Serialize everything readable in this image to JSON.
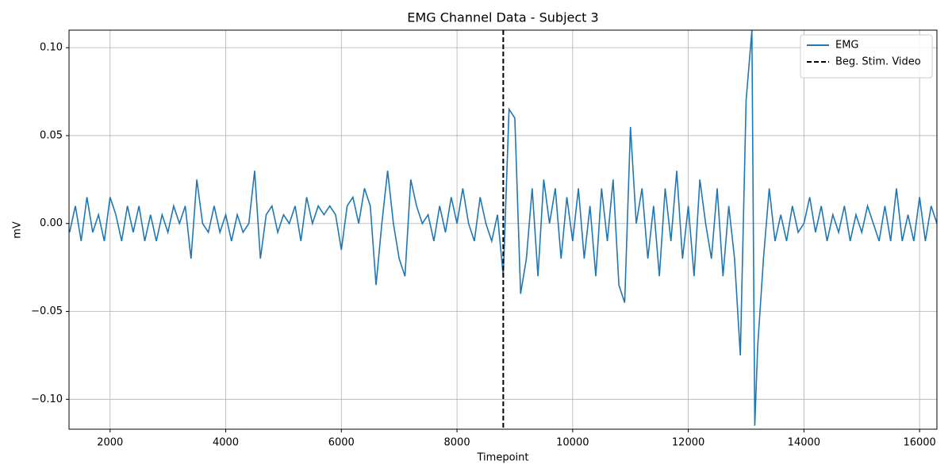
{
  "chart_data": {
    "type": "line",
    "title": "EMG Channel Data - Subject 3",
    "x_label": "Timepoint",
    "y_label": "mV",
    "xlim": [
      1290,
      16300
    ],
    "ylim": [
      -0.117,
      0.11
    ],
    "xticks": [
      2000,
      4000,
      6000,
      8000,
      10000,
      12000,
      14000,
      16000
    ],
    "yticks": [
      {
        "value": -0.1,
        "label": "−0.10"
      },
      {
        "value": -0.05,
        "label": "−0.05"
      },
      {
        "value": 0,
        "label": "0.00"
      },
      0.05,
      {
        "value": 0.1,
        "label": "0.10"
      }
    ],
    "grid": true,
    "legend": "upper right",
    "x": [
      1300,
      1400,
      1500,
      1600,
      1700,
      1800,
      1900,
      2000,
      2100,
      2200,
      2300,
      2400,
      2500,
      2600,
      2700,
      2800,
      2900,
      3000,
      3100,
      3200,
      3300,
      3400,
      3500,
      3600,
      3700,
      3800,
      3900,
      4000,
      4100,
      4200,
      4300,
      4400,
      4500,
      4600,
      4700,
      4800,
      4900,
      5000,
      5100,
      5200,
      5300,
      5400,
      5500,
      5600,
      5700,
      5800,
      5900,
      6000,
      6100,
      6200,
      6300,
      6400,
      6500,
      6600,
      6700,
      6800,
      6900,
      7000,
      7100,
      7200,
      7300,
      7400,
      7500,
      7600,
      7700,
      7800,
      7900,
      8000,
      8100,
      8200,
      8300,
      8400,
      8500,
      8600,
      8700,
      8800,
      8900,
      9000,
      9100,
      9200,
      9300,
      9400,
      9500,
      9600,
      9700,
      9800,
      9900,
      10000,
      10100,
      10200,
      10300,
      10400,
      10500,
      10600,
      10700,
      10800,
      10900,
      11000,
      11100,
      11200,
      11300,
      11400,
      11500,
      11600,
      11700,
      11800,
      11900,
      12000,
      12100,
      12200,
      12300,
      12400,
      12500,
      12600,
      12700,
      12800,
      12900,
      13000,
      13100,
      13150,
      13200,
      13300,
      13400,
      13500,
      13600,
      13700,
      13800,
      13900,
      14000,
      14100,
      14200,
      14300,
      14400,
      14500,
      14600,
      14700,
      14800,
      14900,
      15000,
      15100,
      15200,
      15300,
      15400,
      15500,
      15600,
      15700,
      15800,
      15900,
      16000,
      16100,
      16200,
      16300
    ],
    "series": [
      {
        "name": "EMG",
        "color": "#1f77b4",
        "values": [
          -0.005,
          0.01,
          -0.01,
          0.015,
          -0.005,
          0.005,
          -0.01,
          0.015,
          0.005,
          -0.01,
          0.01,
          -0.005,
          0.01,
          -0.01,
          0.005,
          -0.01,
          0.005,
          -0.005,
          0.01,
          0.0,
          0.01,
          -0.02,
          0.025,
          0.0,
          -0.005,
          0.01,
          -0.005,
          0.005,
          -0.01,
          0.005,
          -0.005,
          0.0,
          0.03,
          -0.02,
          0.005,
          0.01,
          -0.005,
          0.005,
          0.0,
          0.01,
          -0.01,
          0.015,
          0.0,
          0.01,
          0.005,
          0.01,
          0.005,
          -0.015,
          0.01,
          0.015,
          0.0,
          0.02,
          0.01,
          -0.035,
          0.0,
          0.03,
          0.0,
          -0.02,
          -0.03,
          0.025,
          0.01,
          0.0,
          0.005,
          -0.01,
          0.01,
          -0.005,
          0.015,
          0.0,
          0.02,
          0.0,
          -0.01,
          0.015,
          0.0,
          -0.01,
          0.005,
          -0.03,
          0.065,
          0.06,
          -0.04,
          -0.02,
          0.02,
          -0.03,
          0.025,
          0.0,
          0.02,
          -0.02,
          0.015,
          -0.01,
          0.02,
          -0.02,
          0.01,
          -0.03,
          0.02,
          -0.01,
          0.025,
          -0.035,
          -0.045,
          0.055,
          0.0,
          0.02,
          -0.02,
          0.01,
          -0.03,
          0.02,
          -0.01,
          0.03,
          -0.02,
          0.01,
          -0.03,
          0.025,
          0.0,
          -0.02,
          0.02,
          -0.03,
          0.01,
          -0.02,
          -0.075,
          0.07,
          0.11,
          -0.115,
          -0.07,
          -0.02,
          0.02,
          -0.01,
          0.005,
          -0.01,
          0.01,
          -0.005,
          0.0,
          0.015,
          -0.005,
          0.01,
          -0.01,
          0.005,
          -0.005,
          0.01,
          -0.01,
          0.005,
          -0.005,
          0.01,
          0.0,
          -0.01,
          0.01,
          -0.01,
          0.02,
          -0.01,
          0.005,
          -0.01,
          0.015,
          -0.01,
          0.01,
          0.0
        ]
      }
    ],
    "vlines": [
      {
        "name": "Beg. Stim. Video",
        "x": 8800,
        "color": "#000000",
        "style": "dashed"
      }
    ]
  }
}
